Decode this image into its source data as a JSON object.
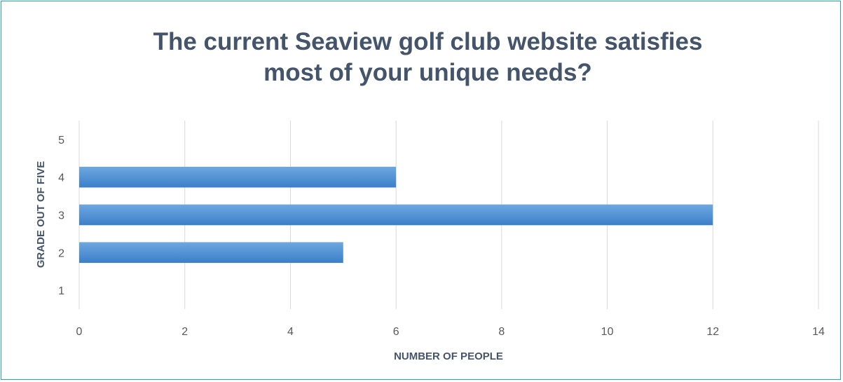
{
  "chart_data": {
    "type": "bar",
    "orientation": "horizontal",
    "title": "The current Seaview golf club website satisfies\nmost of your unique needs?",
    "xlabel": "NUMBER OF PEOPLE",
    "ylabel": "GRADE OUT OF FIVE",
    "categories": [
      "1",
      "2",
      "3",
      "4",
      "5"
    ],
    "values": [
      0,
      5,
      12,
      6,
      0
    ],
    "xlim": [
      0,
      14
    ],
    "xticks": [
      0,
      2,
      4,
      6,
      8,
      10,
      12,
      14
    ],
    "grid": "vertical",
    "legend": "none",
    "bar_color_light": "#6fa7e0",
    "bar_color_dark": "#3a7fc9",
    "grid_color": "#d9d9d9",
    "frame_color": "#1fa3d8"
  }
}
